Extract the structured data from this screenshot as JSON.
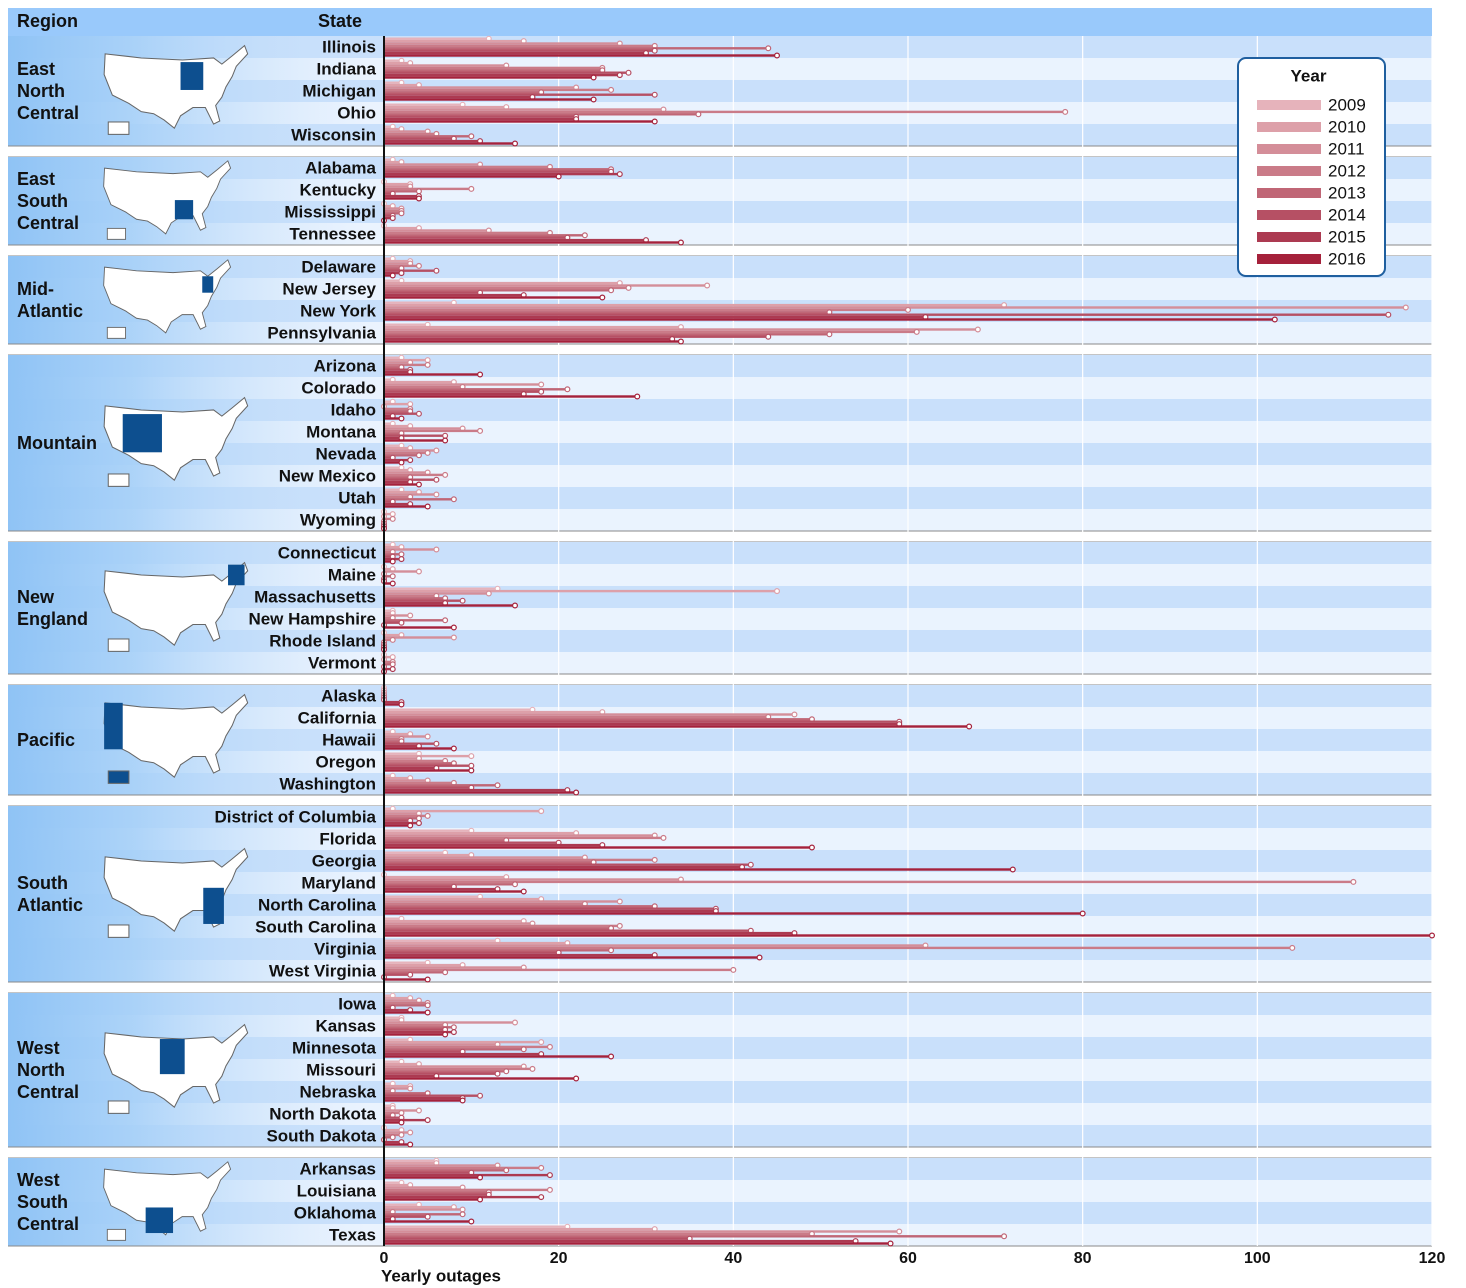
{
  "chart_data": {
    "type": "bar",
    "orientation": "horizontal",
    "region_header": "Region",
    "state_header": "State",
    "xlabel": "Yearly outages",
    "legend_title": "Year",
    "legend_position": "upper right",
    "xlim": [
      0,
      120
    ],
    "xticks": [
      0,
      20,
      40,
      60,
      80,
      100,
      120
    ],
    "grid": true,
    "regions": [
      {
        "name": "East North Central",
        "categories": [
          "Illinois",
          "Indiana",
          "Michigan",
          "Ohio",
          "Wisconsin"
        ]
      },
      {
        "name": "East South Central",
        "categories": [
          "Alabama",
          "Kentucky",
          "Mississippi",
          "Tennessee"
        ]
      },
      {
        "name": "Mid-Atlantic",
        "categories": [
          "Delaware",
          "New Jersey",
          "New York",
          "Pennsylvania"
        ]
      },
      {
        "name": "Mountain",
        "categories": [
          "Arizona",
          "Colorado",
          "Idaho",
          "Montana",
          "Nevada",
          "New Mexico",
          "Utah",
          "Wyoming"
        ]
      },
      {
        "name": "New England",
        "categories": [
          "Connecticut",
          "Maine",
          "Massachusetts",
          "New Hampshire",
          "Rhode Island",
          "Vermont"
        ]
      },
      {
        "name": "Pacific",
        "categories": [
          "Alaska",
          "California",
          "Hawaii",
          "Oregon",
          "Washington"
        ]
      },
      {
        "name": "South Atlantic",
        "categories": [
          "District of Columbia",
          "Florida",
          "Georgia",
          "Maryland",
          "North Carolina",
          "South Carolina",
          "Virginia",
          "West Virginia"
        ]
      },
      {
        "name": "West North Central",
        "categories": [
          "Iowa",
          "Kansas",
          "Minnesota",
          "Missouri",
          "Nebraska",
          "North Dakota",
          "South Dakota"
        ]
      },
      {
        "name": "West South Central",
        "categories": [
          "Arkansas",
          "Louisiana",
          "Oklahoma",
          "Texas"
        ]
      }
    ],
    "series": [
      {
        "name": "2009",
        "color": "#e6b3bb",
        "values": [
          12,
          2,
          2,
          9,
          1,
          1,
          0,
          0,
          0,
          1,
          2,
          8,
          5,
          2,
          1,
          1,
          1,
          2,
          2,
          2,
          0,
          1,
          0,
          13,
          1,
          0,
          0,
          0,
          17,
          1,
          4,
          1,
          1,
          10,
          7,
          0,
          11,
          2,
          13,
          5,
          1,
          2,
          3,
          2,
          1,
          1,
          0,
          6,
          2,
          4,
          21
        ]
      },
      {
        "name": "2010",
        "color": "#dda0a9",
        "values": [
          16,
          3,
          4,
          14,
          2,
          2,
          3,
          1,
          4,
          3,
          27,
          71,
          34,
          5,
          8,
          3,
          3,
          3,
          3,
          4,
          1,
          2,
          1,
          45,
          1,
          2,
          1,
          0,
          25,
          3,
          10,
          3,
          18,
          22,
          10,
          14,
          18,
          16,
          21,
          9,
          3,
          2,
          18,
          4,
          3,
          1,
          2,
          6,
          3,
          8,
          31
        ]
      },
      {
        "name": "2011",
        "color": "#d48e99",
        "values": [
          27,
          14,
          22,
          32,
          5,
          11,
          3,
          2,
          12,
          3,
          37,
          117,
          68,
          3,
          18,
          0,
          9,
          6,
          5,
          6,
          0,
          6,
          4,
          12,
          3,
          8,
          0,
          0,
          47,
          5,
          4,
          5,
          4,
          31,
          23,
          34,
          27,
          17,
          62,
          16,
          4,
          15,
          13,
          16,
          3,
          4,
          3,
          13,
          9,
          9,
          59
        ]
      },
      {
        "name": "2012",
        "color": "#ca7b88",
        "values": [
          31,
          25,
          26,
          78,
          6,
          19,
          10,
          2,
          19,
          4,
          28,
          60,
          61,
          5,
          9,
          3,
          11,
          5,
          7,
          3,
          1,
          1,
          0,
          6,
          1,
          1,
          1,
          0,
          44,
          2,
          7,
          8,
          5,
          32,
          31,
          111,
          23,
          27,
          104,
          40,
          5,
          7,
          19,
          17,
          1,
          2,
          2,
          18,
          19,
          1,
          49
        ]
      },
      {
        "name": "2013",
        "color": "#c06676",
        "values": [
          44,
          25,
          18,
          36,
          10,
          26,
          4,
          2,
          23,
          2,
          26,
          51,
          51,
          2,
          21,
          3,
          2,
          4,
          3,
          8,
          0,
          2,
          1,
          7,
          7,
          0,
          1,
          0,
          49,
          2,
          8,
          13,
          4,
          14,
          24,
          15,
          31,
          26,
          26,
          7,
          5,
          8,
          16,
          14,
          5,
          1,
          1,
          14,
          12,
          9,
          71
        ]
      },
      {
        "name": "2014",
        "color": "#b65064",
        "values": [
          31,
          28,
          31,
          22,
          8,
          26,
          1,
          1,
          21,
          6,
          11,
          115,
          44,
          3,
          18,
          4,
          7,
          1,
          6,
          1,
          0,
          1,
          0,
          9,
          2,
          0,
          0,
          0,
          59,
          6,
          10,
          10,
          3,
          20,
          42,
          8,
          38,
          42,
          20,
          3,
          1,
          7,
          9,
          13,
          11,
          2,
          0,
          10,
          12,
          5,
          35
        ]
      },
      {
        "name": "2015",
        "color": "#ac3a51",
        "values": [
          30,
          27,
          17,
          22,
          11,
          27,
          4,
          1,
          30,
          2,
          16,
          62,
          33,
          3,
          16,
          1,
          2,
          3,
          3,
          3,
          0,
          2,
          0,
          7,
          0,
          0,
          1,
          2,
          59,
          4,
          6,
          21,
          4,
          25,
          41,
          13,
          38,
          47,
          31,
          0,
          3,
          8,
          18,
          6,
          9,
          5,
          2,
          19,
          18,
          1,
          54
        ]
      },
      {
        "name": "2016",
        "color": "#a5213b",
        "values": [
          45,
          24,
          24,
          31,
          15,
          20,
          4,
          0,
          34,
          1,
          25,
          102,
          34,
          11,
          29,
          2,
          7,
          2,
          4,
          5,
          0,
          1,
          1,
          15,
          8,
          0,
          0,
          2,
          67,
          8,
          10,
          22,
          3,
          49,
          72,
          16,
          80,
          120,
          43,
          5,
          5,
          7,
          26,
          22,
          9,
          2,
          3,
          11,
          11,
          10,
          58
        ]
      }
    ]
  }
}
